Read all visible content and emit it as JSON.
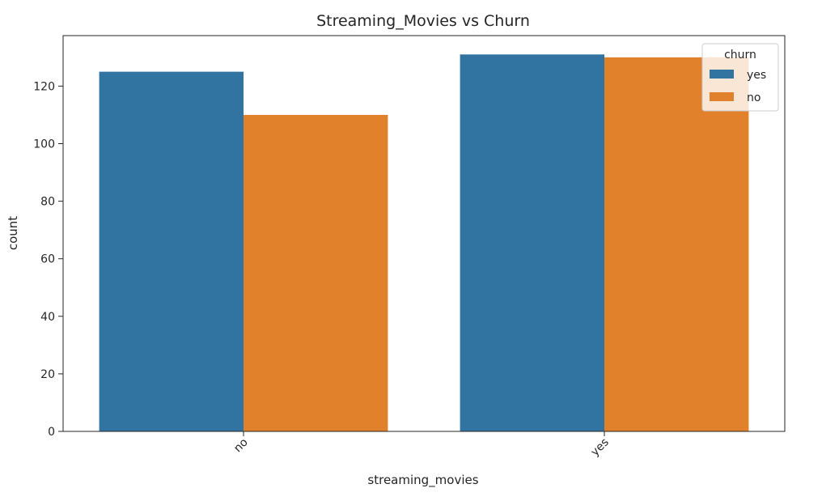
{
  "chart_data": {
    "type": "bar",
    "title": "Streaming_Movies vs Churn",
    "xlabel": "streaming_movies",
    "ylabel": "count",
    "categories": [
      "no",
      "yes"
    ],
    "series": [
      {
        "name": "yes",
        "color": "#3274a1",
        "values": [
          125,
          131
        ]
      },
      {
        "name": "no",
        "color": "#e1812c",
        "values": [
          110,
          130
        ]
      }
    ],
    "ylim": [
      0,
      137.55
    ],
    "yticks": [
      0,
      20,
      40,
      60,
      80,
      100,
      120
    ],
    "legend": {
      "title": "churn",
      "placement": "top-right"
    },
    "grid": false
  }
}
